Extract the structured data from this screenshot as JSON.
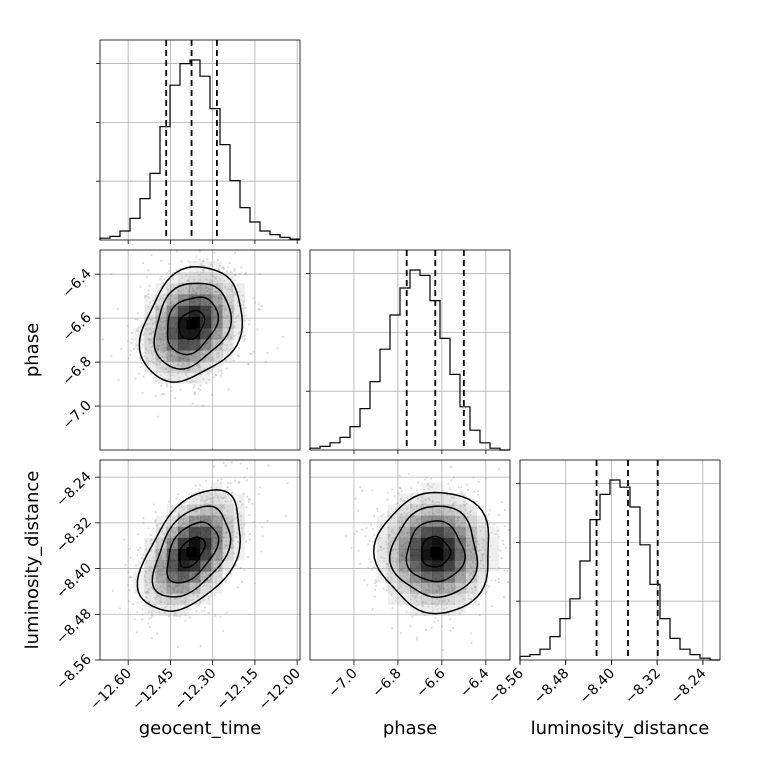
{
  "chart_data": {
    "type": "corner",
    "parameters": [
      "geocent_time",
      "phase",
      "luminosity_distance"
    ],
    "axis_labels": [
      "geocent_time",
      "phase",
      "luminosity_distance"
    ],
    "ranges": [
      [
        -12.7,
        -11.99
      ],
      [
        -7.2,
        -6.29
      ],
      [
        -8.56,
        -8.21
      ]
    ],
    "ticks": [
      [
        -12.6,
        -12.45,
        -12.3,
        -12.15,
        -12.0
      ],
      [
        -7.0,
        -6.8,
        -6.6,
        -6.4
      ],
      [
        -8.56,
        -8.48,
        -8.4,
        -8.32,
        -8.24
      ]
    ],
    "tick_labels": [
      [
        "−12.60",
        "−12.45",
        "−12.30",
        "−12.15",
        "−12.00"
      ],
      [
        "−7.0",
        "−6.8",
        "−6.6",
        "−6.4"
      ],
      [
        "−8.56",
        "−8.48",
        "−8.40",
        "−8.32",
        "−8.24"
      ]
    ],
    "quantiles": [
      [
        -12.465,
        -12.375,
        -12.285
      ],
      [
        -6.76,
        -6.63,
        -6.5
      ],
      [
        -8.426,
        -8.371,
        -8.319
      ]
    ],
    "means": [
      -12.375,
      -6.63,
      -8.371
    ],
    "sigmas": [
      0.09,
      0.13,
      0.053
    ],
    "correlations": {
      "0-1": 0.25,
      "0-2": 0.45,
      "1-2": 0.0
    },
    "histograms": [
      [
        0.01,
        0.02,
        0.05,
        0.12,
        0.23,
        0.37,
        0.63,
        0.86,
        0.98,
        1.0,
        0.91,
        0.73,
        0.53,
        0.33,
        0.18,
        0.1,
        0.05,
        0.03,
        0.015,
        0.005
      ],
      [
        0.01,
        0.02,
        0.04,
        0.07,
        0.13,
        0.23,
        0.38,
        0.56,
        0.75,
        0.9,
        1.0,
        0.97,
        0.83,
        0.62,
        0.42,
        0.24,
        0.11,
        0.04,
        0.01,
        0.0
      ],
      [
        0.02,
        0.03,
        0.06,
        0.13,
        0.23,
        0.34,
        0.55,
        0.78,
        0.92,
        1.0,
        0.96,
        0.85,
        0.64,
        0.42,
        0.23,
        0.12,
        0.06,
        0.03,
        0.01,
        0.0
      ]
    ],
    "contour_levels_sigma": [
      0.5,
      1.0,
      1.5,
      2.0
    ],
    "grid": true,
    "legend": "none"
  }
}
